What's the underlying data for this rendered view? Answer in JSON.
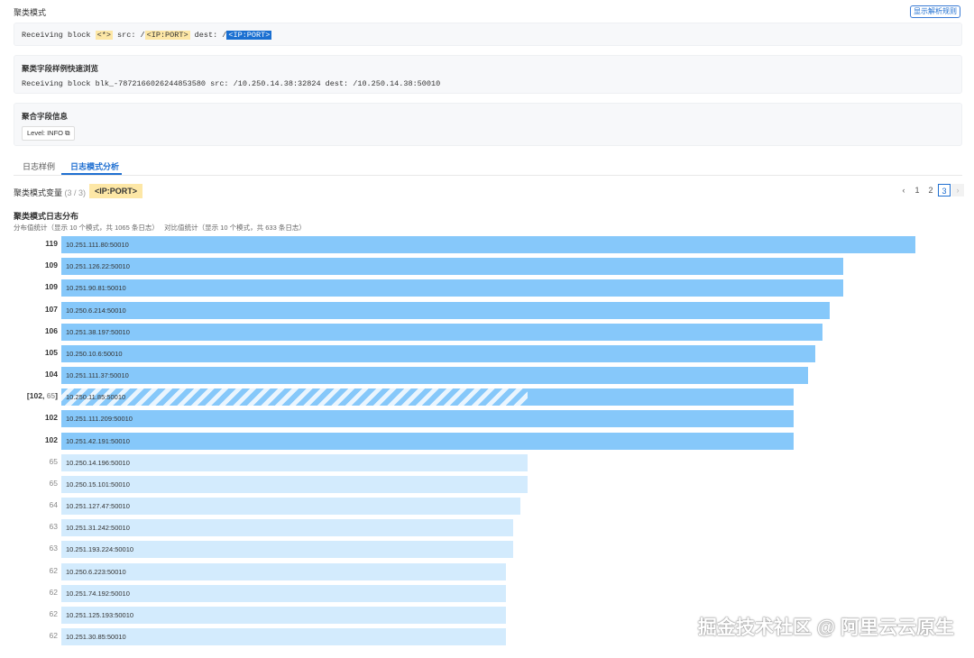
{
  "header": {
    "title": "聚类模式",
    "rule_button": "显示解析规则"
  },
  "pattern": {
    "prefix": "Receiving block ",
    "var1": "<*>",
    "mid1": " src: /",
    "var2": "<IP:PORT>",
    "mid2": " dest: /",
    "var3": "<IP:PORT>"
  },
  "sample": {
    "title": "聚类字段样例快速浏览",
    "text": "Receiving block blk_-7872166026244853580 src: /10.250.14.38:32824 dest: /10.250.14.38:50010"
  },
  "agg": {
    "title": "聚合字段信息",
    "level": "Level: INFO"
  },
  "tabs": [
    {
      "label": "日志样例"
    },
    {
      "label": "日志模式分析"
    }
  ],
  "variable": {
    "label": "聚类模式变量",
    "count": "(3 / 3)",
    "tag": "<IP:PORT>"
  },
  "pagination": {
    "pages": [
      "1",
      "2",
      "3"
    ],
    "current": "3"
  },
  "dist": {
    "title": "聚类模式日志分布",
    "subtitle_a": "分布值统计（显示 10 个模式，共 1065 条日志）",
    "subtitle_b": "对比值统计（显示 10 个模式，共 633 条日志）"
  },
  "colors": {
    "primary_bar": "#86c8fa",
    "compare_bar": "#d3ebfd",
    "accent": "#1f6fd1",
    "highlight": "#fde7a6"
  },
  "chart_data": {
    "type": "bar",
    "orientation": "horizontal",
    "xlim": [
      0,
      119
    ],
    "rows": [
      {
        "label": "10.251.111.80:50010",
        "count": "119",
        "value": 119,
        "kind": "primary"
      },
      {
        "label": "10.251.126.22:50010",
        "count": "109",
        "value": 109,
        "kind": "primary"
      },
      {
        "label": "10.251.90.81:50010",
        "count": "109",
        "value": 109,
        "kind": "primary"
      },
      {
        "label": "10.250.6.214:50010",
        "count": "107",
        "value": 107,
        "kind": "primary"
      },
      {
        "label": "10.251.38.197:50010",
        "count": "106",
        "value": 106,
        "kind": "primary"
      },
      {
        "label": "10.250.10.6:50010",
        "count": "105",
        "value": 105,
        "kind": "primary"
      },
      {
        "label": "10.251.111.37:50010",
        "count": "104",
        "value": 104,
        "kind": "primary"
      },
      {
        "label": "10.250.11.85:50010",
        "count": "102",
        "count2": "65",
        "value": 102,
        "value2": 65,
        "kind": "both"
      },
      {
        "label": "10.251.111.209:50010",
        "count": "102",
        "value": 102,
        "kind": "primary"
      },
      {
        "label": "10.251.42.191:50010",
        "count": "102",
        "value": 102,
        "kind": "primary"
      },
      {
        "label": "10.250.14.196:50010",
        "count": "65",
        "value": 65,
        "kind": "compare"
      },
      {
        "label": "10.250.15.101:50010",
        "count": "65",
        "value": 65,
        "kind": "compare"
      },
      {
        "label": "10.251.127.47:50010",
        "count": "64",
        "value": 64,
        "kind": "compare"
      },
      {
        "label": "10.251.31.242:50010",
        "count": "63",
        "value": 63,
        "kind": "compare"
      },
      {
        "label": "10.251.193.224:50010",
        "count": "63",
        "value": 63,
        "kind": "compare"
      },
      {
        "label": "10.250.6.223:50010",
        "count": "62",
        "value": 62,
        "kind": "compare"
      },
      {
        "label": "10.251.74.192:50010",
        "count": "62",
        "value": 62,
        "kind": "compare"
      },
      {
        "label": "10.251.125.193:50010",
        "count": "62",
        "value": 62,
        "kind": "compare"
      },
      {
        "label": "10.251.30.85:50010",
        "count": "62",
        "value": 62,
        "kind": "compare"
      }
    ]
  },
  "watermark": "掘金技术社区 @ 阿里云云原生"
}
